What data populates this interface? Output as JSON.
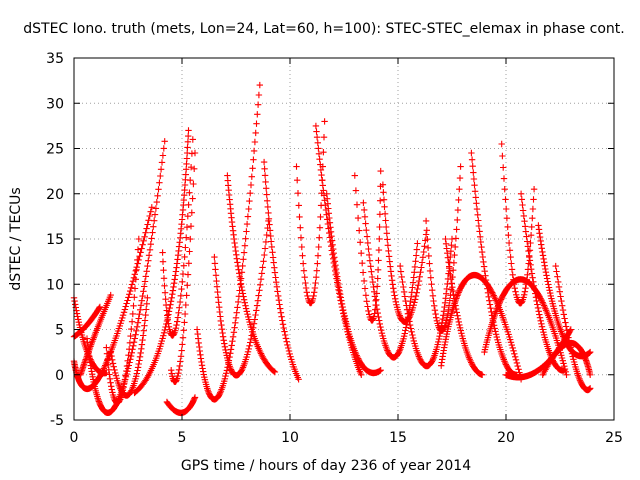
{
  "chart_data": {
    "type": "scatter",
    "title": "dSTEC Iono. truth (mets, Lon=24, Lat=60, h=100): STEC-STEC_elemax in phase cont.",
    "xlabel": "GPS time / hours of day 236 of year 2014",
    "ylabel": "dSTEC  / TECUs",
    "xlim": [
      0,
      25
    ],
    "ylim": [
      -5,
      35
    ],
    "x_ticks": [
      0,
      5,
      10,
      15,
      20,
      25
    ],
    "y_ticks": [
      -5,
      0,
      5,
      10,
      15,
      20,
      25,
      30,
      35
    ],
    "x_tick_labels": [
      "0",
      "5",
      "10",
      "15",
      "20",
      "25"
    ],
    "y_tick_labels": [
      "-5",
      "0",
      "5",
      "10",
      "15",
      "20",
      "25",
      "30",
      "35"
    ],
    "grid": true,
    "marker": "plus",
    "series_color": "#ff0000",
    "point_step_hours": 0.05,
    "arcs": [
      {
        "x": [
          0.0,
          0.7,
          1.5
        ],
        "y": [
          8.5,
          2.0,
          0.2
        ]
      },
      {
        "x": [
          0.0,
          0.6,
          1.2
        ],
        "y": [
          4.2,
          5.5,
          7.5
        ]
      },
      {
        "x": [
          0.3,
          0.9,
          1.7
        ],
        "y": [
          0.0,
          4.0,
          8.8
        ]
      },
      {
        "x": [
          0.0,
          1.3,
          3.6
        ],
        "y": [
          1.5,
          0.3,
          18.5
        ]
      },
      {
        "x": [
          1.5,
          2.2,
          3.0
        ],
        "y": [
          3.0,
          -2.3,
          15.0
        ]
      },
      {
        "x": [
          0.6,
          2.1,
          4.2
        ],
        "y": [
          4.0,
          -2.5,
          25.8
        ]
      },
      {
        "x": [
          1.7,
          2.6,
          3.4
        ],
        "y": [
          2.5,
          -2.0,
          8.5
        ]
      },
      {
        "x": [
          4.1,
          4.7,
          5.5
        ],
        "y": [
          13.5,
          5.0,
          26.0
        ]
      },
      {
        "x": [
          2.8,
          4.4,
          5.3
        ],
        "y": [
          -2.0,
          7.0,
          27.0
        ]
      },
      {
        "x": [
          4.5,
          5.0,
          5.6
        ],
        "y": [
          0.5,
          3.0,
          24.5
        ]
      },
      {
        "x": [
          4.3,
          5.0,
          5.6
        ],
        "y": [
          -3.0,
          -4.2,
          -2.5
        ]
      },
      {
        "x": [
          5.7,
          7.0,
          8.6
        ],
        "y": [
          5.0,
          -0.3,
          32.0
        ]
      },
      {
        "x": [
          6.5,
          7.6,
          9.0
        ],
        "y": [
          13.0,
          0.0,
          17.0
        ]
      },
      {
        "x": [
          7.1,
          8.0,
          9.3
        ],
        "y": [
          22.0,
          7.0,
          0.3
        ]
      },
      {
        "x": [
          8.8,
          9.5,
          10.4
        ],
        "y": [
          23.5,
          8.0,
          -0.5
        ]
      },
      {
        "x": [
          10.3,
          11.0,
          11.6
        ],
        "y": [
          23.0,
          8.0,
          28.0
        ]
      },
      {
        "x": [
          11.2,
          12.2,
          13.3
        ],
        "y": [
          27.5,
          10.0,
          0.0
        ]
      },
      {
        "x": [
          11.7,
          12.8,
          14.2
        ],
        "y": [
          20.0,
          4.0,
          0.5
        ]
      },
      {
        "x": [
          13.0,
          13.8,
          14.2
        ],
        "y": [
          22.0,
          6.0,
          22.5
        ]
      },
      {
        "x": [
          13.4,
          14.7,
          15.9
        ],
        "y": [
          19.0,
          2.0,
          14.5
        ]
      },
      {
        "x": [
          14.3,
          15.2,
          16.3
        ],
        "y": [
          21.0,
          6.0,
          15.5
        ]
      },
      {
        "x": [
          15.1,
          16.4,
          17.5
        ],
        "y": [
          12.0,
          1.0,
          15.0
        ]
      },
      {
        "x": [
          16.3,
          17.1,
          17.9
        ],
        "y": [
          17.0,
          5.0,
          23.0
        ]
      },
      {
        "x": [
          17.2,
          18.0,
          18.9
        ],
        "y": [
          15.0,
          4.0,
          0.0
        ]
      },
      {
        "x": [
          18.4,
          19.4,
          20.5
        ],
        "y": [
          24.5,
          6.0,
          0.0
        ]
      },
      {
        "x": [
          19.8,
          20.6,
          21.3
        ],
        "y": [
          25.5,
          8.0,
          20.5
        ]
      },
      {
        "x": [
          20.7,
          21.7,
          22.7
        ],
        "y": [
          20.0,
          5.0,
          0.5
        ]
      },
      {
        "x": [
          21.5,
          22.6,
          23.9
        ],
        "y": [
          16.5,
          4.5,
          2.5
        ]
      },
      {
        "x": [
          22.3,
          23.2,
          23.9
        ],
        "y": [
          12.0,
          1.0,
          -1.5
        ]
      },
      {
        "x": [
          17.0,
          18.6,
          20.7
        ],
        "y": [
          1.0,
          11.0,
          -0.5
        ]
      },
      {
        "x": [
          19.0,
          20.8,
          22.8
        ],
        "y": [
          2.5,
          10.5,
          0.0
        ]
      },
      {
        "x": [
          20.0,
          21.5,
          23.0
        ],
        "y": [
          0.0,
          0.5,
          5.0
        ]
      },
      {
        "x": [
          21.7,
          23.0,
          23.9
        ],
        "y": [
          0.0,
          3.5,
          0.0
        ]
      }
    ]
  }
}
